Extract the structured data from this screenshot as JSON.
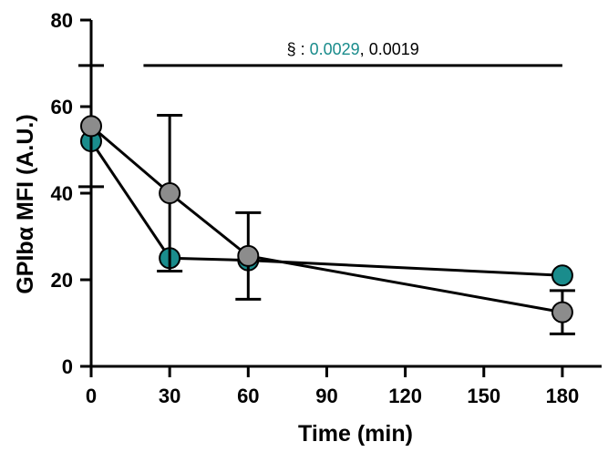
{
  "chart_data": {
    "type": "scatter",
    "xlabel": "Time (min)",
    "ylabel": "GPIbα MFI (A.U.)",
    "xlim": [
      0,
      195
    ],
    "ylim": [
      0,
      80
    ],
    "x_ticks": [
      0,
      30,
      60,
      90,
      120,
      150,
      180
    ],
    "y_ticks": [
      0,
      20,
      40,
      60,
      80
    ],
    "series": [
      {
        "color": "#1a8c8c",
        "x": [
          0,
          30,
          60,
          180
        ],
        "y": [
          52,
          25,
          24.5,
          21
        ],
        "error": [
          null,
          null,
          null,
          null
        ]
      },
      {
        "color": "#8c8c8c",
        "x": [
          0,
          30,
          60,
          180
        ],
        "y": [
          55.5,
          40,
          25.5,
          12.5
        ],
        "error": [
          14,
          18,
          10,
          5
        ]
      }
    ],
    "annotation": {
      "symbol": "§",
      "separator": " : ",
      "p_values": [
        {
          "text": "0.0029",
          "color": "#1a8c8c"
        },
        {
          "text": "0.0019",
          "color": "#000000"
        }
      ],
      "x_range": [
        20,
        180
      ],
      "y": 69.5
    }
  }
}
